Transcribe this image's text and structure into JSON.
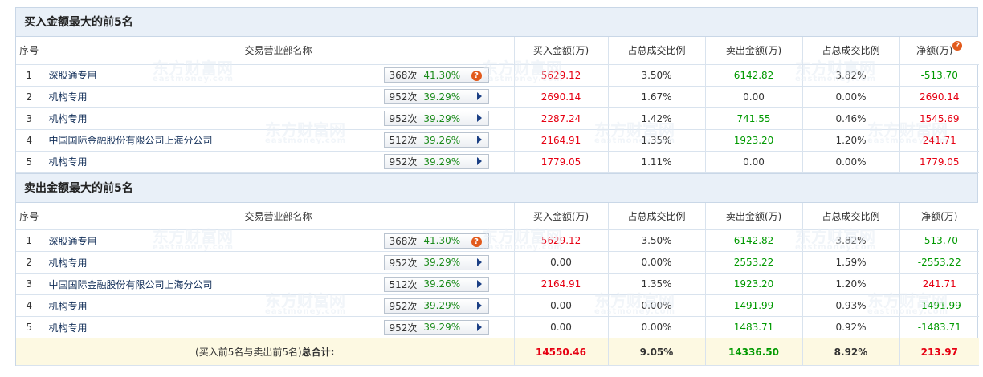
{
  "buy_section": {
    "title": "买入金额最大的前5名",
    "headers": {
      "no": "序号",
      "dept": "交易营业部名称",
      "buy": "买入金额(万)",
      "buy_ratio": "占总成交比例",
      "sell": "卖出金额(万)",
      "sell_ratio": "占总成交比例",
      "net": "净额(万)"
    },
    "rows": [
      {
        "no": "1",
        "dept": "深股通专用",
        "count": "368次",
        "pct": "41.30%",
        "icon": "question-icon",
        "buy": "5629.12",
        "buy_ratio": "3.50%",
        "sell": "6142.82",
        "sell_ratio": "3.82%",
        "net": "-513.70"
      },
      {
        "no": "2",
        "dept": "机构专用",
        "count": "952次",
        "pct": "39.29%",
        "icon": "arrow-right-icon",
        "buy": "2690.14",
        "buy_ratio": "1.67%",
        "sell": "0.00",
        "sell_ratio": "0.00%",
        "net": "2690.14"
      },
      {
        "no": "3",
        "dept": "机构专用",
        "count": "952次",
        "pct": "39.29%",
        "icon": "arrow-right-icon",
        "buy": "2287.24",
        "buy_ratio": "1.42%",
        "sell": "741.55",
        "sell_ratio": "0.46%",
        "net": "1545.69"
      },
      {
        "no": "4",
        "dept": "中国国际金融股份有限公司上海分公司",
        "count": "512次",
        "pct": "39.26%",
        "icon": "arrow-right-icon",
        "buy": "2164.91",
        "buy_ratio": "1.35%",
        "sell": "1923.20",
        "sell_ratio": "1.20%",
        "net": "241.71"
      },
      {
        "no": "5",
        "dept": "机构专用",
        "count": "952次",
        "pct": "39.29%",
        "icon": "arrow-right-icon",
        "buy": "1779.05",
        "buy_ratio": "1.11%",
        "sell": "0.00",
        "sell_ratio": "0.00%",
        "net": "1779.05"
      }
    ]
  },
  "sell_section": {
    "title": "卖出金额最大的前5名",
    "headers": {
      "no": "序号",
      "dept": "交易营业部名称",
      "buy": "买入金额(万)",
      "buy_ratio": "占总成交比例",
      "sell": "卖出金额(万)",
      "sell_ratio": "占总成交比例",
      "net": "净额(万)"
    },
    "rows": [
      {
        "no": "1",
        "dept": "深股通专用",
        "count": "368次",
        "pct": "41.30%",
        "icon": "question-icon",
        "buy": "5629.12",
        "buy_ratio": "3.50%",
        "sell": "6142.82",
        "sell_ratio": "3.82%",
        "net": "-513.70"
      },
      {
        "no": "2",
        "dept": "机构专用",
        "count": "952次",
        "pct": "39.29%",
        "icon": "arrow-right-icon",
        "buy": "0.00",
        "buy_ratio": "0.00%",
        "sell": "2553.22",
        "sell_ratio": "1.59%",
        "net": "-2553.22"
      },
      {
        "no": "3",
        "dept": "中国国际金融股份有限公司上海分公司",
        "count": "512次",
        "pct": "39.26%",
        "icon": "arrow-right-icon",
        "buy": "2164.91",
        "buy_ratio": "1.35%",
        "sell": "1923.20",
        "sell_ratio": "1.20%",
        "net": "241.71"
      },
      {
        "no": "4",
        "dept": "机构专用",
        "count": "952次",
        "pct": "39.29%",
        "icon": "arrow-right-icon",
        "buy": "0.00",
        "buy_ratio": "0.00%",
        "sell": "1491.99",
        "sell_ratio": "0.93%",
        "net": "-1491.99"
      },
      {
        "no": "5",
        "dept": "机构专用",
        "count": "952次",
        "pct": "39.29%",
        "icon": "arrow-right-icon",
        "buy": "0.00",
        "buy_ratio": "0.00%",
        "sell": "1483.71",
        "sell_ratio": "0.92%",
        "net": "-1483.71"
      }
    ],
    "total": {
      "label_prefix": "(买入前5名与卖出前5名)",
      "label_bold": "总合计:",
      "buy": "14550.46",
      "buy_ratio": "9.05%",
      "sell": "14336.50",
      "sell_ratio": "8.92%",
      "net": "213.97"
    }
  },
  "watermark": {
    "cn": "东方财富网",
    "en": "eastmoney.com"
  },
  "colors": {
    "positive": "#e60012",
    "negative": "#009900",
    "header_bg": "#e9f0f8",
    "total_bg": "#fdf9e2"
  }
}
